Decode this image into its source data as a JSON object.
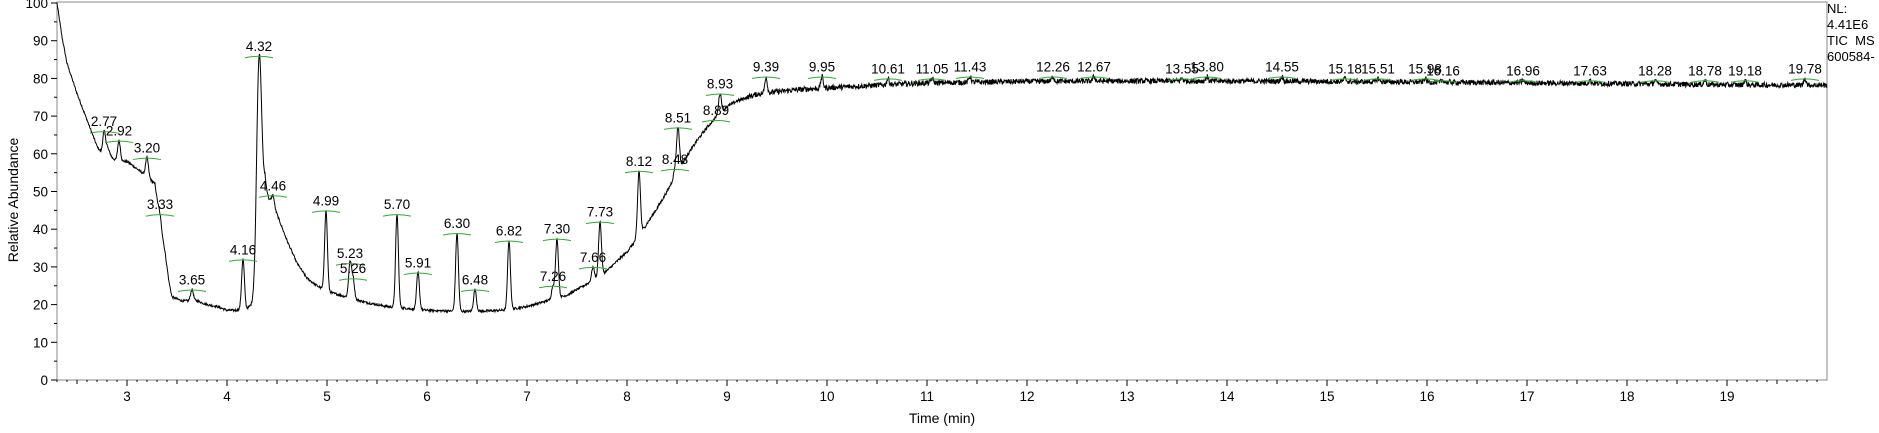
{
  "chart_data": {
    "type": "line",
    "title": "",
    "xlabel": "Time (min)",
    "ylabel": "Relative Abundance",
    "xlim": [
      2.3,
      20.0
    ],
    "ylim": [
      0,
      100
    ],
    "x_ticks": [
      3,
      4,
      5,
      6,
      7,
      8,
      9,
      10,
      11,
      12,
      13,
      14,
      15,
      16,
      17,
      18,
      19
    ],
    "y_ticks": [
      0,
      10,
      20,
      30,
      40,
      50,
      60,
      70,
      80,
      90,
      100
    ],
    "grid": false,
    "line_color": "#000000",
    "marker_color": "#33aa33",
    "info_lines": [
      "NL:",
      "4.41E6",
      "TIC  MS",
      "600584-"
    ],
    "baseline": [
      [
        2.3,
        100
      ],
      [
        2.35,
        91
      ],
      [
        2.4,
        84
      ],
      [
        2.5,
        76
      ],
      [
        2.6,
        69
      ],
      [
        2.7,
        62
      ],
      [
        2.75,
        60
      ],
      [
        2.8,
        62
      ],
      [
        2.85,
        59
      ],
      [
        2.9,
        58
      ],
      [
        3.0,
        58
      ],
      [
        3.1,
        56
      ],
      [
        3.2,
        54
      ],
      [
        3.28,
        52
      ],
      [
        3.33,
        42
      ],
      [
        3.38,
        34
      ],
      [
        3.42,
        26
      ],
      [
        3.45,
        22
      ],
      [
        3.55,
        21
      ],
      [
        3.7,
        21
      ],
      [
        3.8,
        20
      ],
      [
        3.9,
        19.5
      ],
      [
        4.0,
        18.5
      ],
      [
        4.1,
        18.5
      ],
      [
        4.2,
        19
      ],
      [
        4.25,
        20
      ],
      [
        4.28,
        21
      ],
      [
        4.38,
        52
      ],
      [
        4.42,
        48
      ],
      [
        4.5,
        44
      ],
      [
        4.6,
        37
      ],
      [
        4.7,
        31
      ],
      [
        4.8,
        27
      ],
      [
        4.9,
        25
      ],
      [
        5.0,
        23.5
      ],
      [
        5.2,
        22
      ],
      [
        5.4,
        20.5
      ],
      [
        5.6,
        19.5
      ],
      [
        5.8,
        19
      ],
      [
        6.0,
        18.5
      ],
      [
        6.2,
        18.3
      ],
      [
        6.4,
        18.2
      ],
      [
        6.6,
        18.3
      ],
      [
        6.8,
        18.6
      ],
      [
        7.0,
        19.5
      ],
      [
        7.2,
        21
      ],
      [
        7.4,
        22.5
      ],
      [
        7.5,
        24
      ],
      [
        7.6,
        25.5
      ],
      [
        7.7,
        27
      ],
      [
        7.8,
        29
      ],
      [
        7.9,
        31.5
      ],
      [
        8.0,
        34
      ],
      [
        8.1,
        37.5
      ],
      [
        8.2,
        41.5
      ],
      [
        8.3,
        45.5
      ],
      [
        8.4,
        50
      ],
      [
        8.5,
        55
      ],
      [
        8.6,
        59.5
      ],
      [
        8.7,
        63.5
      ],
      [
        8.8,
        67
      ],
      [
        8.9,
        70
      ],
      [
        9.0,
        72.5
      ],
      [
        9.1,
        74
      ],
      [
        9.2,
        75
      ],
      [
        9.3,
        75.8
      ],
      [
        9.5,
        76.5
      ],
      [
        9.7,
        77
      ],
      [
        10.0,
        77.5
      ],
      [
        10.5,
        78.2
      ],
      [
        11.0,
        78.8
      ],
      [
        11.5,
        79
      ],
      [
        12.0,
        79.2
      ],
      [
        13.0,
        79.3
      ],
      [
        14.0,
        79.3
      ],
      [
        15.0,
        79.2
      ],
      [
        16.0,
        79
      ],
      [
        17.0,
        78.8
      ],
      [
        18.0,
        78.6
      ],
      [
        19.0,
        78.3
      ],
      [
        20.0,
        78.2
      ]
    ],
    "peaks": [
      {
        "label": "2.77",
        "x": 2.77,
        "y": 66
      },
      {
        "label": "2.92",
        "x": 2.92,
        "y": 63.5
      },
      {
        "label": "3.20",
        "x": 3.2,
        "y": 59
      },
      {
        "label": "3.33",
        "x": 3.33,
        "y": 44
      },
      {
        "label": "3.65",
        "x": 3.65,
        "y": 24
      },
      {
        "label": "4.16",
        "x": 4.16,
        "y": 32
      },
      {
        "label": "4.32",
        "x": 4.32,
        "y": 86
      },
      {
        "label": "4.46",
        "x": 4.46,
        "y": 49
      },
      {
        "label": "4.99",
        "x": 4.99,
        "y": 45
      },
      {
        "label": "5.23",
        "x": 5.23,
        "y": 31
      },
      {
        "label": "5.26",
        "x": 5.26,
        "y": 27
      },
      {
        "label": "5.70",
        "x": 5.7,
        "y": 44
      },
      {
        "label": "5.91",
        "x": 5.91,
        "y": 28.5
      },
      {
        "label": "6.30",
        "x": 6.3,
        "y": 39
      },
      {
        "label": "6.48",
        "x": 6.48,
        "y": 24
      },
      {
        "label": "6.82",
        "x": 6.82,
        "y": 37
      },
      {
        "label": "7.26",
        "x": 7.26,
        "y": 25
      },
      {
        "label": "7.30",
        "x": 7.3,
        "y": 37.5
      },
      {
        "label": "7.66",
        "x": 7.66,
        "y": 30
      },
      {
        "label": "7.73",
        "x": 7.73,
        "y": 42
      },
      {
        "label": "8.12",
        "x": 8.12,
        "y": 55.5
      },
      {
        "label": "8.48",
        "x": 8.48,
        "y": 56
      },
      {
        "label": "8.51",
        "x": 8.51,
        "y": 67
      },
      {
        "label": "8.89",
        "x": 8.89,
        "y": 69
      },
      {
        "label": "8.93",
        "x": 8.93,
        "y": 76
      },
      {
        "label": "9.39",
        "x": 9.39,
        "y": 80.5
      },
      {
        "label": "9.95",
        "x": 9.95,
        "y": 80.5
      },
      {
        "label": "10.61",
        "x": 10.61,
        "y": 80
      },
      {
        "label": "11.05",
        "x": 11.05,
        "y": 80
      },
      {
        "label": "11.43",
        "x": 11.43,
        "y": 80.5
      },
      {
        "label": "12.26",
        "x": 12.26,
        "y": 80.5
      },
      {
        "label": "12.67",
        "x": 12.67,
        "y": 80.5
      },
      {
        "label": "13.55",
        "x": 13.55,
        "y": 80
      },
      {
        "label": "13.80",
        "x": 13.8,
        "y": 80.5
      },
      {
        "label": "14.55",
        "x": 14.55,
        "y": 80.5
      },
      {
        "label": "15.18",
        "x": 15.18,
        "y": 80
      },
      {
        "label": "15.51",
        "x": 15.51,
        "y": 80
      },
      {
        "label": "15.98",
        "x": 15.98,
        "y": 80
      },
      {
        "label": "16.16",
        "x": 16.16,
        "y": 79.5
      },
      {
        "label": "16.96",
        "x": 16.96,
        "y": 79.5
      },
      {
        "label": "17.63",
        "x": 17.63,
        "y": 79.5
      },
      {
        "label": "18.28",
        "x": 18.28,
        "y": 79.5
      },
      {
        "label": "18.78",
        "x": 18.78,
        "y": 79.5
      },
      {
        "label": "19.18",
        "x": 19.18,
        "y": 79.5
      },
      {
        "label": "19.78",
        "x": 19.78,
        "y": 80
      }
    ]
  }
}
